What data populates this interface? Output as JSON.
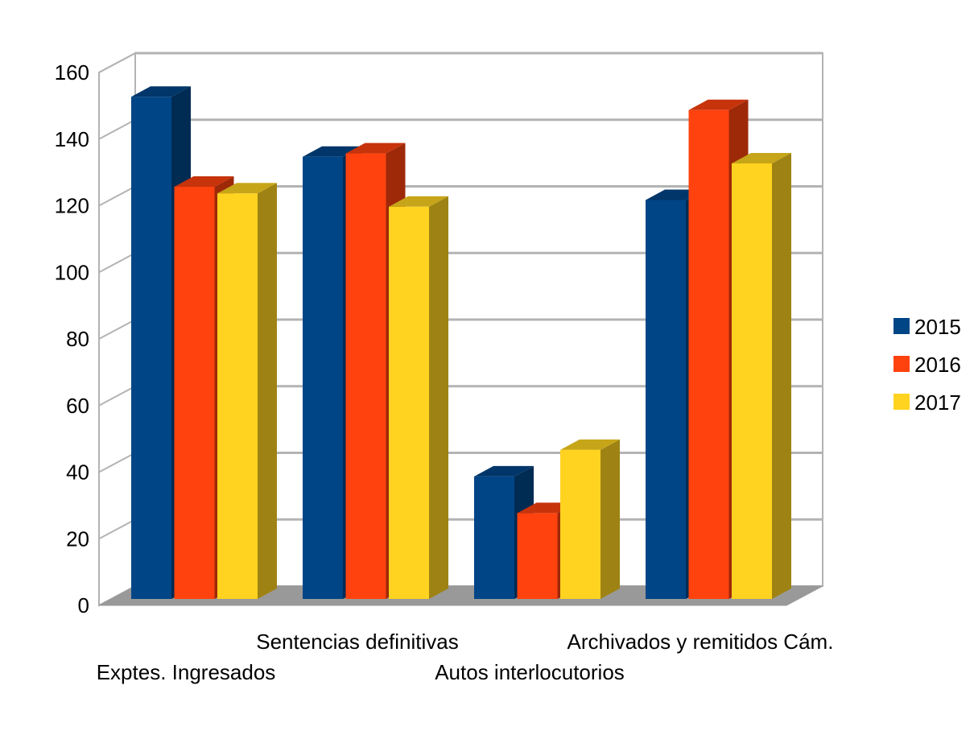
{
  "chart_data": {
    "type": "bar",
    "title": "",
    "xlabel": "",
    "ylabel": "",
    "ylim": [
      0,
      160
    ],
    "yticks": [
      0,
      20,
      40,
      60,
      80,
      100,
      120,
      140,
      160
    ],
    "grid": true,
    "legend_position": "right",
    "categories": [
      "Exptes. Ingresados",
      "Sentencias definitivas",
      "Autos interlocutorios",
      "Archivados y remitidos Cám."
    ],
    "series": [
      {
        "name": "2015",
        "color": "#004586",
        "values": [
          151,
          133,
          37,
          120
        ]
      },
      {
        "name": "2016",
        "color": "#ff420e",
        "values": [
          124,
          134,
          26,
          147
        ]
      },
      {
        "name": "2017",
        "color": "#ffd320",
        "values": [
          122,
          118,
          45,
          131
        ]
      }
    ]
  }
}
